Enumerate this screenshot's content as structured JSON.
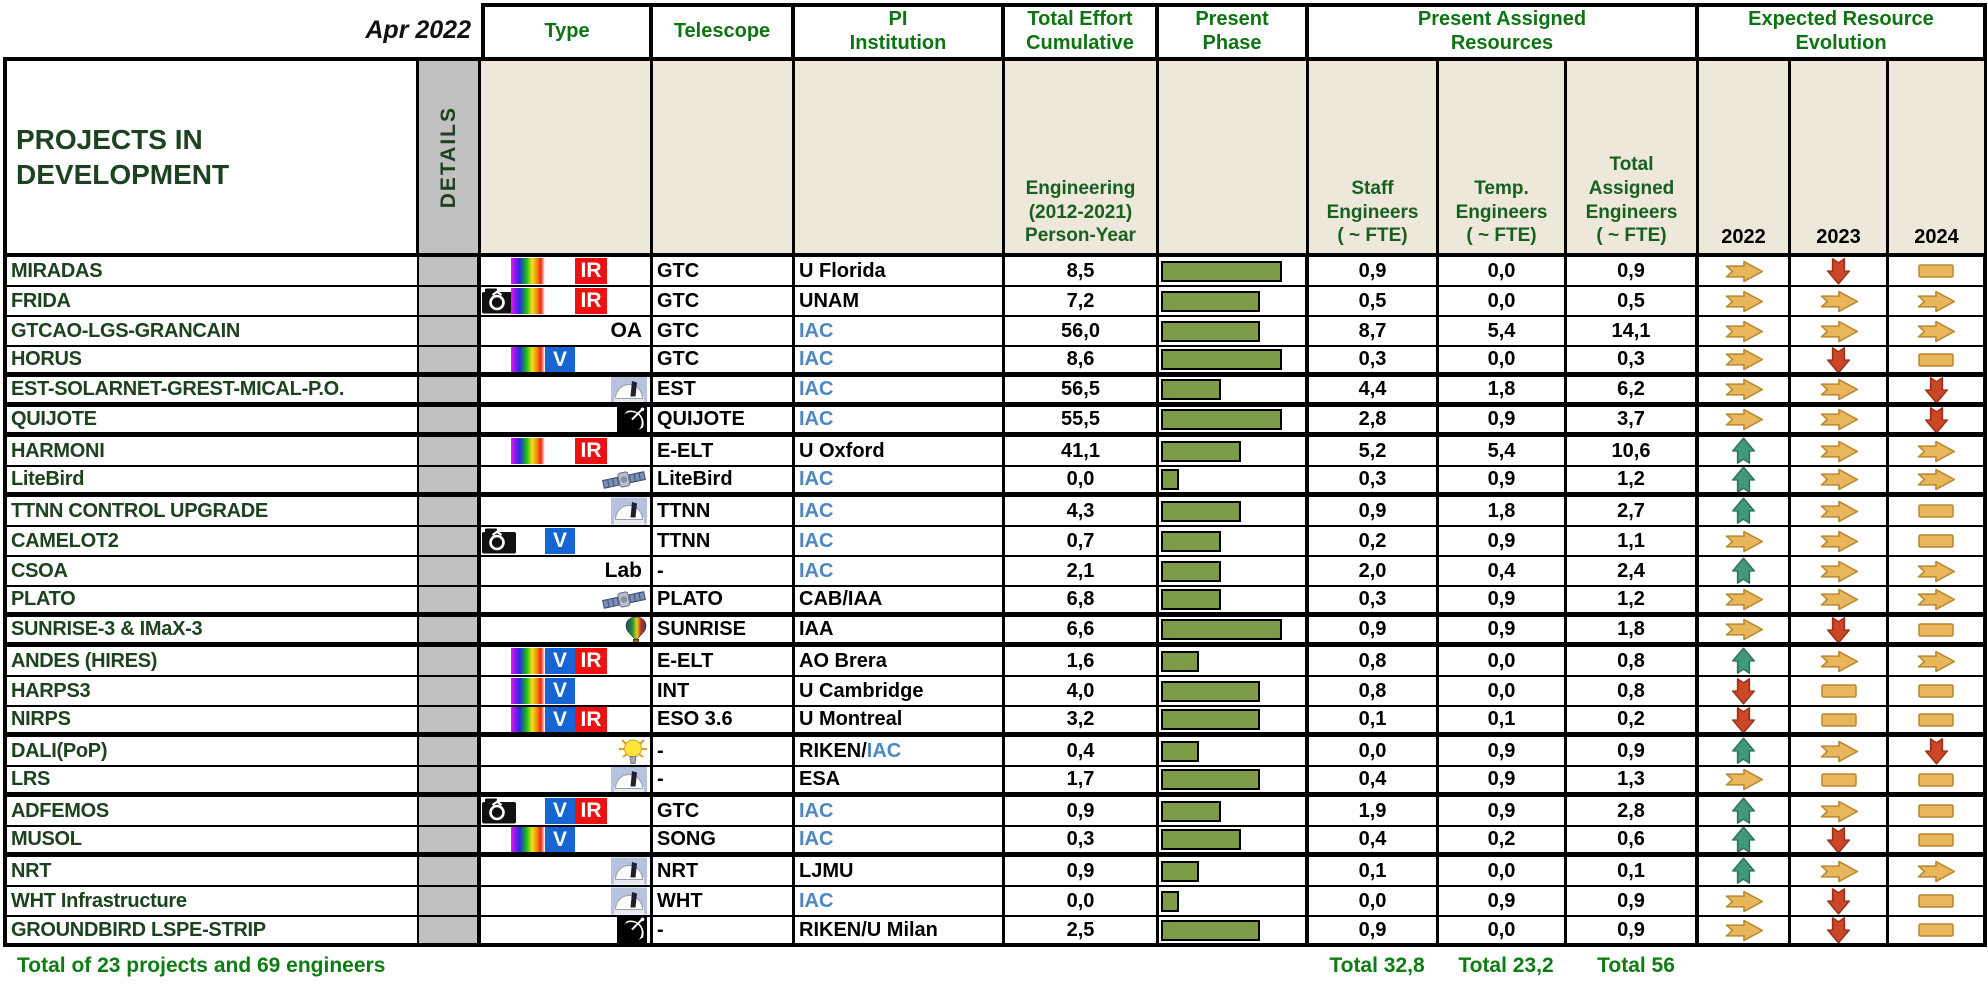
{
  "meta": {
    "date_label": "Apr 2022",
    "title": "PROJECTS IN DEVELOPMENT",
    "details_label": "DETAILS"
  },
  "columns": {
    "type": "Type",
    "telescope": "Telescope",
    "pi": "PI\nInstitution",
    "effort": "Total Effort\nCumulative",
    "phase": "Present\nPhase",
    "resources_group": "Present Assigned\nResources",
    "evolution_group": "Expected Resource\nEvolution",
    "effort_sub": "Engineering\n(2012-2021)\nPerson-Year",
    "staff_sub": "Staff\nEngineers\n( ~ FTE)",
    "temp_sub": "Temp.\nEngineers\n( ~ FTE)",
    "total_sub": "Total\nAssigned\nEngineers\n( ~ FTE)",
    "years": [
      "2022",
      "2023",
      "2024"
    ]
  },
  "icon_labels": {
    "v": "V",
    "ir": "IR",
    "oa": "OA",
    "lab": "Lab"
  },
  "colors": {
    "header_green": "#0e7413",
    "dark_green": "#1d4220",
    "footer_green": "#0e7c12",
    "iac_blue": "#4e86c6",
    "beige": "#ede8da",
    "details_gray": "#c0c0c0",
    "bar_green": "#7e9c47",
    "steady": "#e9b65b",
    "steady_stroke": "#b9892e",
    "increase": "#41997c",
    "increase_stroke": "#2d7055",
    "decrease": "#cc4727",
    "decrease_stroke": "#992f16",
    "flat": "#e9b65b",
    "flat_stroke": "#b9892e",
    "ir_red": "#ee1111",
    "v_blue": "#1566d2"
  },
  "rows": [
    {
      "name": "MIRADAS",
      "type": [
        "rainbow",
        "ir"
      ],
      "telescope": "GTC",
      "pi": [
        [
          "U Florida",
          "k"
        ]
      ],
      "effort": "8,5",
      "phase_pct": 83,
      "staff": "0,9",
      "temp": "0,0",
      "total": "0,9",
      "evolution": [
        "right",
        "down",
        "flat"
      ],
      "group_end": false
    },
    {
      "name": "FRIDA",
      "type": [
        "camera",
        "rainbow",
        "ir"
      ],
      "telescope": "GTC",
      "pi": [
        [
          "UNAM",
          "k"
        ]
      ],
      "effort": "7,2",
      "phase_pct": 68,
      "staff": "0,5",
      "temp": "0,0",
      "total": "0,5",
      "evolution": [
        "right",
        "right",
        "right"
      ],
      "group_end": false
    },
    {
      "name": "GTCAO-LGS-GRANCAIN",
      "type": [
        "oa"
      ],
      "telescope": "GTC",
      "pi": [
        [
          "IAC",
          "b"
        ]
      ],
      "effort": "56,0",
      "phase_pct": 68,
      "staff": "8,7",
      "temp": "5,4",
      "total": "14,1",
      "evolution": [
        "right",
        "right",
        "right"
      ],
      "group_end": false
    },
    {
      "name": "HORUS",
      "type": [
        "rainbow",
        "v"
      ],
      "telescope": "GTC",
      "pi": [
        [
          "IAC",
          "b"
        ]
      ],
      "effort": "8,6",
      "phase_pct": 83,
      "staff": "0,3",
      "temp": "0,0",
      "total": "0,3",
      "evolution": [
        "right",
        "down",
        "flat"
      ],
      "group_end": true
    },
    {
      "name": "EST-SOLARNET-GREST-MICAL-P.O.",
      "type": [
        "dome"
      ],
      "telescope": "EST",
      "pi": [
        [
          "IAC",
          "b"
        ]
      ],
      "effort": "56,5",
      "phase_pct": 41,
      "staff": "4,4",
      "temp": "1,8",
      "total": "6,2",
      "evolution": [
        "right",
        "right",
        "down"
      ],
      "group_end": true
    },
    {
      "name": "QUIJOTE",
      "type": [
        "dish"
      ],
      "telescope": "QUIJOTE",
      "pi": [
        [
          "IAC",
          "b"
        ]
      ],
      "effort": "55,5",
      "phase_pct": 83,
      "staff": "2,8",
      "temp": "0,9",
      "total": "3,7",
      "evolution": [
        "right",
        "right",
        "down"
      ],
      "group_end": true
    },
    {
      "name": "HARMONI",
      "type": [
        "rainbow",
        "ir"
      ],
      "telescope": "E-ELT",
      "pi": [
        [
          "U Oxford",
          "k"
        ]
      ],
      "effort": "41,1",
      "phase_pct": 55,
      "staff": "5,2",
      "temp": "5,4",
      "total": "10,6",
      "evolution": [
        "up",
        "right",
        "right"
      ],
      "group_end": false
    },
    {
      "name": "LiteBird",
      "type": [
        "satellite"
      ],
      "telescope": "LiteBird",
      "pi": [
        [
          "IAC",
          "b"
        ]
      ],
      "effort": "0,0",
      "phase_pct": 12,
      "staff": "0,3",
      "temp": "0,9",
      "total": "1,2",
      "evolution": [
        "up",
        "right",
        "right"
      ],
      "group_end": true
    },
    {
      "name": "TTNN CONTROL UPGRADE",
      "type": [
        "dome"
      ],
      "telescope": "TTNN",
      "pi": [
        [
          "IAC",
          "b"
        ]
      ],
      "effort": "4,3",
      "phase_pct": 55,
      "staff": "0,9",
      "temp": "1,8",
      "total": "2,7",
      "evolution": [
        "up",
        "right",
        "flat"
      ],
      "group_end": false
    },
    {
      "name": "CAMELOT2",
      "type": [
        "camera",
        "v"
      ],
      "telescope": "TTNN",
      "pi": [
        [
          "IAC",
          "b"
        ]
      ],
      "effort": "0,7",
      "phase_pct": 41,
      "staff": "0,2",
      "temp": "0,9",
      "total": "1,1",
      "evolution": [
        "right",
        "right",
        "flat"
      ],
      "group_end": false
    },
    {
      "name": "CSOA",
      "type": [
        "lab"
      ],
      "telescope": "-",
      "pi": [
        [
          "IAC",
          "b"
        ]
      ],
      "effort": "2,1",
      "phase_pct": 41,
      "staff": "2,0",
      "temp": "0,4",
      "total": "2,4",
      "evolution": [
        "up",
        "right",
        "right"
      ],
      "group_end": false
    },
    {
      "name": "PLATO",
      "type": [
        "satellite"
      ],
      "telescope": "PLATO",
      "pi": [
        [
          "CAB/IAA",
          "k"
        ]
      ],
      "effort": "6,8",
      "phase_pct": 41,
      "staff": "0,3",
      "temp": "0,9",
      "total": "1,2",
      "evolution": [
        "right",
        "right",
        "right"
      ],
      "group_end": true
    },
    {
      "name": "SUNRISE-3 & IMaX-3",
      "type": [
        "balloon"
      ],
      "telescope": "SUNRISE",
      "pi": [
        [
          "IAA",
          "k"
        ]
      ],
      "effort": "6,6",
      "phase_pct": 83,
      "staff": "0,9",
      "temp": "0,9",
      "total": "1,8",
      "evolution": [
        "right",
        "down",
        "flat"
      ],
      "group_end": true
    },
    {
      "name": "ANDES (HIRES)",
      "type": [
        "rainbow",
        "v",
        "ir"
      ],
      "telescope": "E-ELT",
      "pi": [
        [
          "AO Brera",
          "k"
        ]
      ],
      "effort": "1,6",
      "phase_pct": 26,
      "staff": "0,8",
      "temp": "0,0",
      "total": "0,8",
      "evolution": [
        "up",
        "right",
        "right"
      ],
      "group_end": false
    },
    {
      "name": "HARPS3",
      "type": [
        "rainbow",
        "v"
      ],
      "telescope": "INT",
      "pi": [
        [
          "U Cambridge",
          "k"
        ]
      ],
      "effort": "4,0",
      "phase_pct": 68,
      "staff": "0,8",
      "temp": "0,0",
      "total": "0,8",
      "evolution": [
        "down",
        "flat",
        "flat"
      ],
      "group_end": false
    },
    {
      "name": "NIRPS",
      "type": [
        "rainbow",
        "v",
        "ir"
      ],
      "telescope": "ESO 3.6",
      "pi": [
        [
          "U Montreal",
          "k"
        ]
      ],
      "effort": "3,2",
      "phase_pct": 68,
      "staff": "0,1",
      "temp": "0,1",
      "total": "0,2",
      "evolution": [
        "down",
        "flat",
        "flat"
      ],
      "group_end": true
    },
    {
      "name": "DALI(PoP)",
      "type": [
        "bulb"
      ],
      "telescope": "-",
      "pi": [
        [
          "RIKEN/",
          "k"
        ],
        [
          "IAC",
          "b"
        ]
      ],
      "effort": "0,4",
      "phase_pct": 26,
      "staff": "0,0",
      "temp": "0,9",
      "total": "0,9",
      "evolution": [
        "up",
        "right",
        "down"
      ],
      "group_end": false
    },
    {
      "name": "LRS",
      "type": [
        "dome"
      ],
      "telescope": "-",
      "pi": [
        [
          "ESA",
          "k"
        ]
      ],
      "effort": "1,7",
      "phase_pct": 68,
      "staff": "0,4",
      "temp": "0,9",
      "total": "1,3",
      "evolution": [
        "right",
        "flat",
        "flat"
      ],
      "group_end": true
    },
    {
      "name": "ADFEMOS",
      "type": [
        "camera",
        "v",
        "ir"
      ],
      "telescope": "GTC",
      "pi": [
        [
          "IAC",
          "b"
        ]
      ],
      "effort": "0,9",
      "phase_pct": 41,
      "staff": "1,9",
      "temp": "0,9",
      "total": "2,8",
      "evolution": [
        "up",
        "right",
        "flat"
      ],
      "group_end": false
    },
    {
      "name": "MUSOL",
      "type": [
        "rainbow",
        "v"
      ],
      "telescope": "SONG",
      "pi": [
        [
          "IAC",
          "b"
        ]
      ],
      "effort": "0,3",
      "phase_pct": 55,
      "staff": "0,4",
      "temp": "0,2",
      "total": "0,6",
      "evolution": [
        "up",
        "down",
        "flat"
      ],
      "group_end": true
    },
    {
      "name": "NRT",
      "type": [
        "dome"
      ],
      "telescope": "NRT",
      "pi": [
        [
          "LJMU",
          "k"
        ]
      ],
      "effort": "0,9",
      "phase_pct": 26,
      "staff": "0,1",
      "temp": "0,0",
      "total": "0,1",
      "evolution": [
        "up",
        "right",
        "right"
      ],
      "group_end": false
    },
    {
      "name": "WHT Infrastructure",
      "type": [
        "dome"
      ],
      "telescope": "WHT",
      "pi": [
        [
          "IAC",
          "b"
        ]
      ],
      "effort": "0,0",
      "phase_pct": 12,
      "staff": "0,0",
      "temp": "0,9",
      "total": "0,9",
      "evolution": [
        "right",
        "down",
        "flat"
      ],
      "group_end": false
    },
    {
      "name": "GROUNDBIRD LSPE-STRIP",
      "type": [
        "dish"
      ],
      "telescope": "-",
      "pi": [
        [
          "RIKEN/U Milan",
          "k"
        ]
      ],
      "effort": "2,5",
      "phase_pct": 68,
      "staff": "0,9",
      "temp": "0,0",
      "total": "0,9",
      "evolution": [
        "right",
        "down",
        "flat"
      ],
      "group_end": false
    }
  ],
  "footer": {
    "summary": "Total of 23 projects and 69 engineers",
    "staff_total": "Total 32,8",
    "temp_total": "Total 23,2",
    "assigned_total": "Total 56"
  }
}
